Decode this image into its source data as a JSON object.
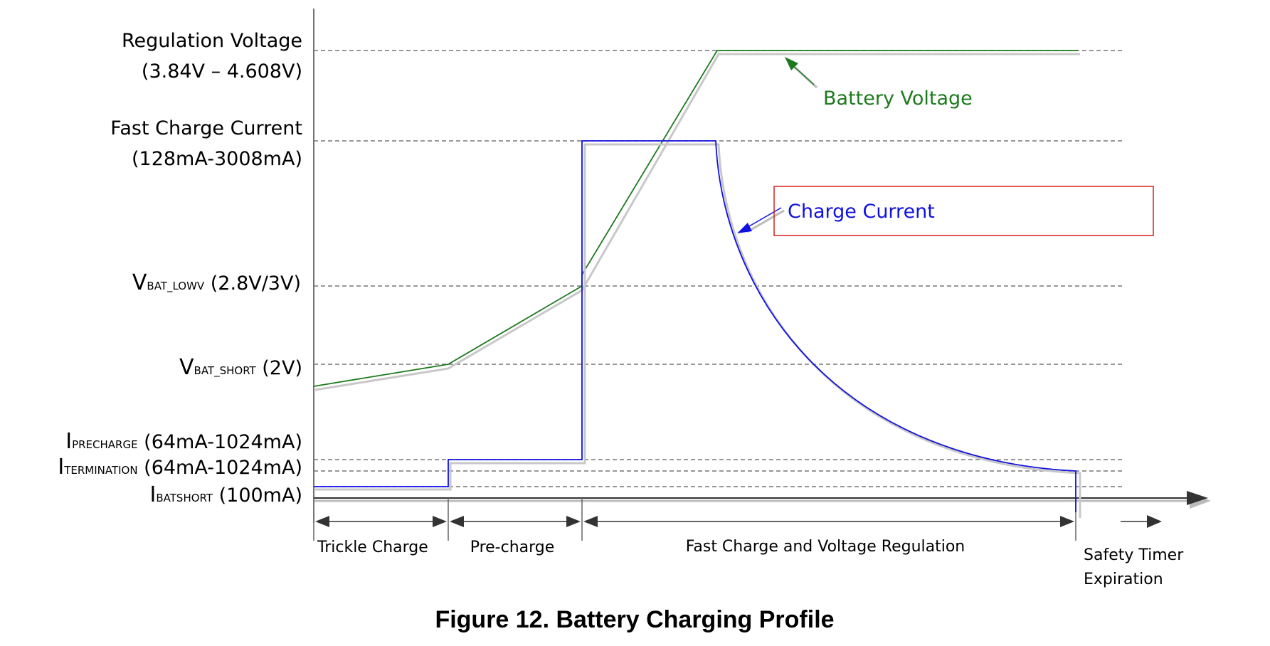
{
  "levels": {
    "regulation_voltage": {
      "line1": "Regulation Voltage",
      "line2": "(3.84V – 4.608V)"
    },
    "fast_charge_current": {
      "line1": "Fast Charge Current",
      "line2": "(128mA-3008mA)"
    },
    "vbat_lowv": {
      "main": "V",
      "sub": "BAT_LOWV",
      "value": " (2.8V/3V)"
    },
    "vbat_short": {
      "main": "V",
      "sub": "BAT_SHORT",
      "value": " (2V)"
    },
    "iprecharge": {
      "main": "I",
      "sub": "PRECHARGE",
      "value": " (64mA-1024mA)"
    },
    "itermination": {
      "main": "I",
      "sub": "TERMINATION",
      "value": " (64mA-1024mA)"
    },
    "ibatshort": {
      "main": "I",
      "sub": "BATSHORT",
      "value": " (100mA)"
    }
  },
  "series_labels": {
    "battery_voltage": "Battery Voltage",
    "charge_current": "Charge Current"
  },
  "phases": {
    "trickle": "Trickle Charge",
    "precharge": "Pre-charge",
    "fast": "Fast Charge and Voltage Regulation",
    "timer_line1": "Safety Timer",
    "timer_line2": "Expiration"
  },
  "caption": "Figure 12.  Battery Charging Profile",
  "colors": {
    "voltage": "#1e7a1e",
    "current": "#1010e0",
    "highlight_box": "#d42020"
  }
}
